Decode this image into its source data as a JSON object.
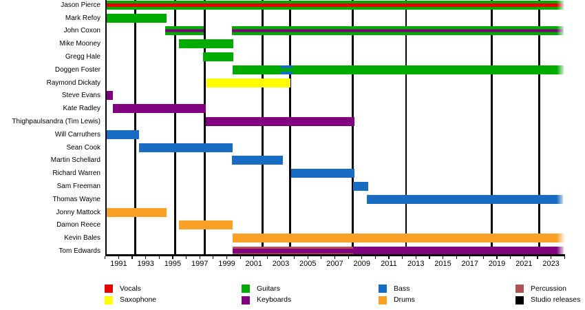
{
  "chart_data": {
    "type": "timeline",
    "subject": "Band members timeline",
    "x_axis": {
      "start_year": 1990,
      "end_year": 2024,
      "tick_step": 1,
      "label_years": [
        1991,
        1993,
        1995,
        1997,
        1999,
        2001,
        2003,
        2005,
        2007,
        2009,
        2011,
        2013,
        2015,
        2017,
        2019,
        2021,
        2023
      ]
    },
    "colors": {
      "vocals": "#e90000",
      "saxophone": "#ffff00",
      "guitars": "#00ab00",
      "keyboards": "#800080",
      "bass": "#186cc4",
      "drums": "#f9a126",
      "percussion": "#b05252",
      "studio_releases": "#000000",
      "axis": "#000000"
    },
    "release_line_years": [
      1992.23,
      1995.2,
      1997.37,
      2001.67,
      2003.67,
      2008.33,
      2012.27,
      2018.6,
      2022.12
    ],
    "members": [
      {
        "name": "Jason Pierce",
        "bars": [
          {
            "start": 1990.1,
            "end": 2023.95,
            "color": "guitars",
            "stripe": "vocals",
            "stripe_frac": 0.38
          }
        ]
      },
      {
        "name": "Mark Refoy",
        "bars": [
          {
            "start": 1990.1,
            "end": 1994.55,
            "color": "guitars"
          }
        ]
      },
      {
        "name": "John Coxon",
        "bars": [
          {
            "start": 1994.45,
            "end": 1997.3,
            "color": "guitars",
            "stripe": "keyboards",
            "stripe_frac": 0.34
          },
          {
            "start": 1999.4,
            "end": 2023.95,
            "color": "guitars",
            "stripe": "keyboards",
            "stripe_frac": 0.34
          }
        ]
      },
      {
        "name": "Mike Mooney",
        "bars": [
          {
            "start": 1995.45,
            "end": 1999.5,
            "color": "guitars"
          }
        ]
      },
      {
        "name": "Gregg Hale",
        "bars": [
          {
            "start": 1997.25,
            "end": 1999.5,
            "color": "guitars"
          }
        ]
      },
      {
        "name": "Doggen Foster",
        "bars": [
          {
            "start": 1999.45,
            "end": 2023.95,
            "color": "guitars"
          },
          {
            "start": 2003.0,
            "end": 2003.85,
            "color": "bass",
            "stripe": "guitars",
            "stripe_frac": 0.4
          }
        ]
      },
      {
        "name": "Raymond Dickaty",
        "bars": [
          {
            "start": 1997.45,
            "end": 2003.7,
            "color": "saxophone"
          }
        ]
      },
      {
        "name": "Steve Evans",
        "bars": [
          {
            "start": 1990.1,
            "end": 1990.55,
            "color": "keyboards"
          }
        ]
      },
      {
        "name": "Kate Radley",
        "bars": [
          {
            "start": 1990.55,
            "end": 1997.45,
            "color": "keyboards"
          }
        ]
      },
      {
        "name": "Thighpaulsandra (Tim Lewis)",
        "bars": [
          {
            "start": 1997.45,
            "end": 2008.45,
            "color": "keyboards"
          }
        ]
      },
      {
        "name": "Will Carruthers",
        "bars": [
          {
            "start": 1990.1,
            "end": 1992.5,
            "color": "bass"
          }
        ]
      },
      {
        "name": "Sean Cook",
        "bars": [
          {
            "start": 1992.5,
            "end": 1999.45,
            "color": "bass"
          }
        ]
      },
      {
        "name": "Martin Schellard",
        "bars": [
          {
            "start": 1999.4,
            "end": 2003.15,
            "color": "bass"
          }
        ]
      },
      {
        "name": "Richard Warren",
        "bars": [
          {
            "start": 2003.75,
            "end": 2008.45,
            "color": "bass"
          }
        ]
      },
      {
        "name": "Sam Freeman",
        "bars": [
          {
            "start": 2008.35,
            "end": 2009.45,
            "color": "bass"
          }
        ]
      },
      {
        "name": "Thomas Wayne",
        "bars": [
          {
            "start": 2009.35,
            "end": 2023.9,
            "color": "bass"
          }
        ]
      },
      {
        "name": "Jonny Mattock",
        "bars": [
          {
            "start": 1990.1,
            "end": 1994.55,
            "color": "drums"
          }
        ]
      },
      {
        "name": "Damon Reece",
        "bars": [
          {
            "start": 1995.45,
            "end": 1999.45,
            "color": "drums"
          }
        ]
      },
      {
        "name": "Kevin Bales",
        "bars": [
          {
            "start": 1999.45,
            "end": 2024.0,
            "color": "drums"
          }
        ]
      },
      {
        "name": "Tom Edwards",
        "bars": [
          {
            "start": 1999.45,
            "end": 2008.35,
            "color": "percussion",
            "stripe": "keyboards",
            "stripe_frac": 0.5
          },
          {
            "start": 2008.35,
            "end": 2023.95,
            "color": "keyboards"
          }
        ]
      }
    ],
    "legend": [
      {
        "label": "Vocals",
        "role": "vocals"
      },
      {
        "label": "Saxophone",
        "role": "saxophone"
      },
      {
        "label": "Guitars",
        "role": "guitars"
      },
      {
        "label": "Keyboards",
        "role": "keyboards"
      },
      {
        "label": "Bass",
        "role": "bass"
      },
      {
        "label": "Drums",
        "role": "drums"
      },
      {
        "label": "Percussion",
        "role": "percussion"
      },
      {
        "label": "Studio releases",
        "role": "studio_releases"
      }
    ]
  }
}
